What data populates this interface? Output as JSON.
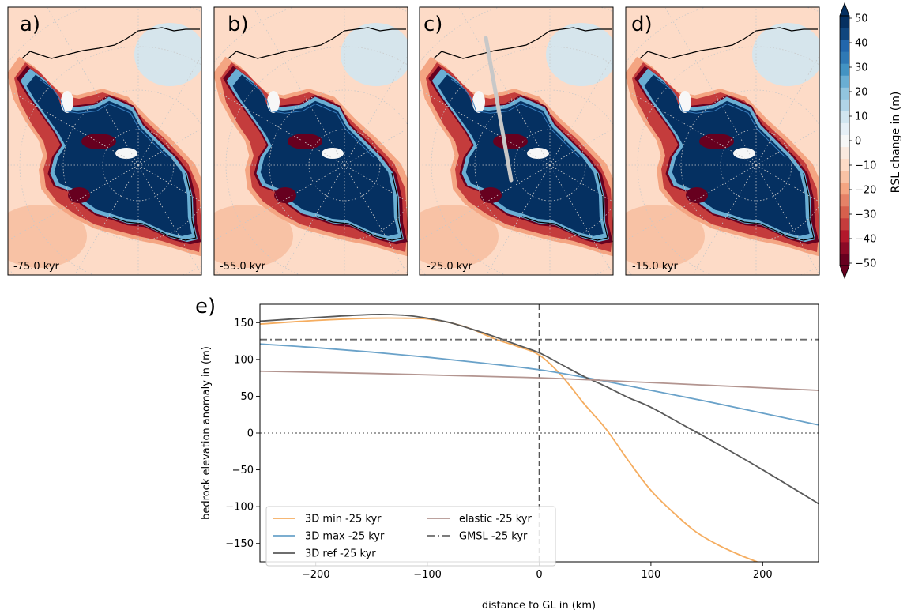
{
  "maps": [
    {
      "panel_label": "a)",
      "time_label": "-75.0 kyr"
    },
    {
      "panel_label": "b)",
      "time_label": "-55.0 kyr"
    },
    {
      "panel_label": "c)",
      "time_label": "-25.0 kyr"
    },
    {
      "panel_label": "d)",
      "time_label": "-15.0 kyr"
    }
  ],
  "colorbar": {
    "label": "RSL change in (m)",
    "ticks": [
      50,
      40,
      30,
      20,
      10,
      0,
      -10,
      -20,
      -30,
      -40,
      -50
    ],
    "tick_labels": [
      "50",
      "40",
      "30",
      "20",
      "10",
      "0",
      "−10",
      "−20",
      "−30",
      "−40",
      "−50"
    ],
    "range": [
      -50,
      50
    ],
    "colors": [
      "#67001f",
      "#8b0a26",
      "#b2182b",
      "#c43c3c",
      "#d6604d",
      "#e58267",
      "#f4a582",
      "#f8c2a5",
      "#fddbc7",
      "#fae9df",
      "#f7f7f7",
      "#e6eff6",
      "#d1e5f0",
      "#b1d4e8",
      "#92c5de",
      "#6aaed3",
      "#4393c3",
      "#2f79b5",
      "#2166ac",
      "#10467e",
      "#053061"
    ],
    "extend": "both"
  },
  "chart_data": {
    "type": "line",
    "panel_label": "e)",
    "xlabel": "distance to GL in (km)",
    "ylabel": "bedrock elevation anomaly in (m)",
    "xlim": [
      -250,
      250
    ],
    "ylim": [
      -175,
      175
    ],
    "xticks": [
      -200,
      -100,
      0,
      100,
      200
    ],
    "xtick_labels": [
      "−200",
      "−100",
      "0",
      "100",
      "200"
    ],
    "yticks": [
      150,
      100,
      50,
      0,
      -50,
      -100,
      -150
    ],
    "ytick_labels": [
      "150",
      "100",
      "50",
      "0",
      "−50",
      "−100",
      "−150"
    ],
    "grid": false,
    "legend_position": "lower left",
    "reference_lines": [
      {
        "orientation": "horizontal",
        "value": 0,
        "style": "dotted",
        "color": "#808080"
      },
      {
        "orientation": "vertical",
        "value": 0,
        "style": "dashed",
        "color": "#555555"
      }
    ],
    "series": [
      {
        "name": "3D min -25 kyr",
        "color": "#f5ad60",
        "style": "solid",
        "x": [
          -250,
          -200,
          -150,
          -120,
          -100,
          -80,
          -60,
          -40,
          -20,
          0,
          20,
          40,
          60,
          80,
          100,
          120,
          140,
          160,
          180,
          200
        ],
        "y": [
          148,
          153,
          156,
          156,
          155,
          150,
          141,
          128,
          118,
          106,
          78,
          40,
          5,
          -38,
          -78,
          -108,
          -134,
          -152,
          -166,
          -178
        ]
      },
      {
        "name": "3D max -25 kyr",
        "color": "#6aa2c9",
        "style": "solid",
        "x": [
          -250,
          -200,
          -150,
          -100,
          -50,
          0,
          50,
          100,
          150,
          200,
          250
        ],
        "y": [
          121,
          116,
          110,
          103,
          95,
          86,
          73,
          58,
          43,
          27,
          11
        ]
      },
      {
        "name": "3D ref -25 kyr",
        "color": "#595959",
        "style": "solid",
        "x": [
          -250,
          -200,
          -150,
          -120,
          -100,
          -80,
          -60,
          -40,
          -20,
          0,
          20,
          40,
          60,
          80,
          100,
          130,
          160,
          200,
          250
        ],
        "y": [
          152,
          157,
          161,
          160,
          156,
          150,
          141,
          131,
          120,
          109,
          93,
          77,
          63,
          48,
          35,
          10,
          -15,
          -50,
          -96
        ]
      },
      {
        "name": "elastic -25 kyr",
        "color": "#b39590",
        "style": "solid",
        "x": [
          -250,
          -150,
          -50,
          0,
          50,
          150,
          250
        ],
        "y": [
          84,
          81,
          77,
          75,
          72,
          65,
          58
        ]
      },
      {
        "name": "GMSL -25 kyr",
        "color": "#6a6a6a",
        "style": "dashdot",
        "x": [
          -250,
          250
        ],
        "y": [
          127,
          127
        ]
      }
    ]
  }
}
